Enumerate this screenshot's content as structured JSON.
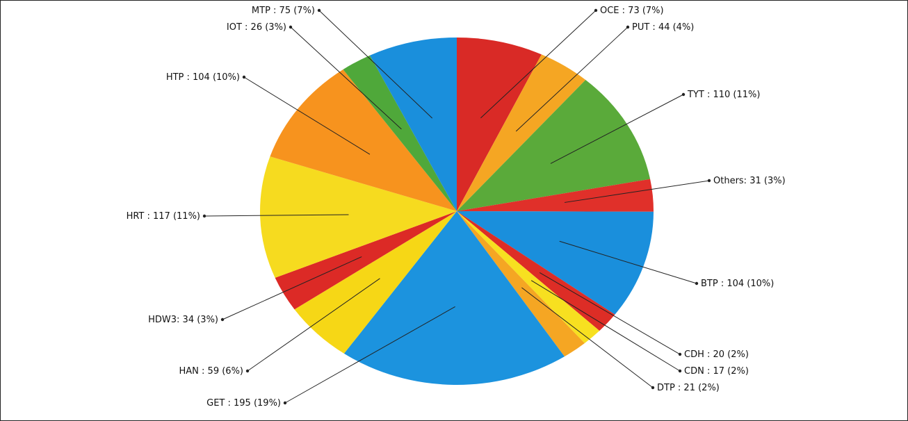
{
  "chart_data": {
    "type": "pie",
    "title": "",
    "legend": "none",
    "slices": [
      {
        "label": "OCE : 73 (7%)",
        "name": "OCE",
        "value": 73,
        "color": "#d92a26"
      },
      {
        "label": "PUT : 44 (4%)",
        "name": "PUT",
        "value": 44,
        "color": "#f5a623"
      },
      {
        "label": "TYT : 110 (11%)",
        "name": "TYT",
        "value": 110,
        "color": "#5aaa3a"
      },
      {
        "label": "Others: 31 (3%)",
        "name": "Others",
        "value": 31,
        "color": "#e0302a"
      },
      {
        "label": "BTP : 104 (10%)",
        "name": "BTP",
        "value": 104,
        "color": "#1a8fdc"
      },
      {
        "label": "CDH : 20 (2%)",
        "name": "CDH",
        "value": 20,
        "color": "#dd2d26"
      },
      {
        "label": "CDN : 17 (2%)",
        "name": "CDN",
        "value": 17,
        "color": "#f7e020"
      },
      {
        "label": "DTP : 21 (2%)",
        "name": "DTP",
        "value": 21,
        "color": "#f5a623"
      },
      {
        "label": "GET : 195 (19%)",
        "name": "GET",
        "value": 195,
        "color": "#1c93de"
      },
      {
        "label": "HAN : 59 (6%)",
        "name": "HAN",
        "value": 59,
        "color": "#f6d716"
      },
      {
        "label": "HDW3: 34 (3%)",
        "name": "HDW3",
        "value": 34,
        "color": "#dc2a26"
      },
      {
        "label": "HRT : 117 (11%)",
        "name": "HRT",
        "value": 117,
        "color": "#f6db1f"
      },
      {
        "label": "HTP : 104 (10%)",
        "name": "HTP",
        "value": 104,
        "color": "#f7931e"
      },
      {
        "label": "IOT : 26 (3%)",
        "name": "IOT",
        "value": 26,
        "color": "#4fa83a"
      },
      {
        "label": "MTP : 75 (7%)",
        "name": "MTP",
        "value": 75,
        "color": "#1a8fdc"
      }
    ]
  }
}
